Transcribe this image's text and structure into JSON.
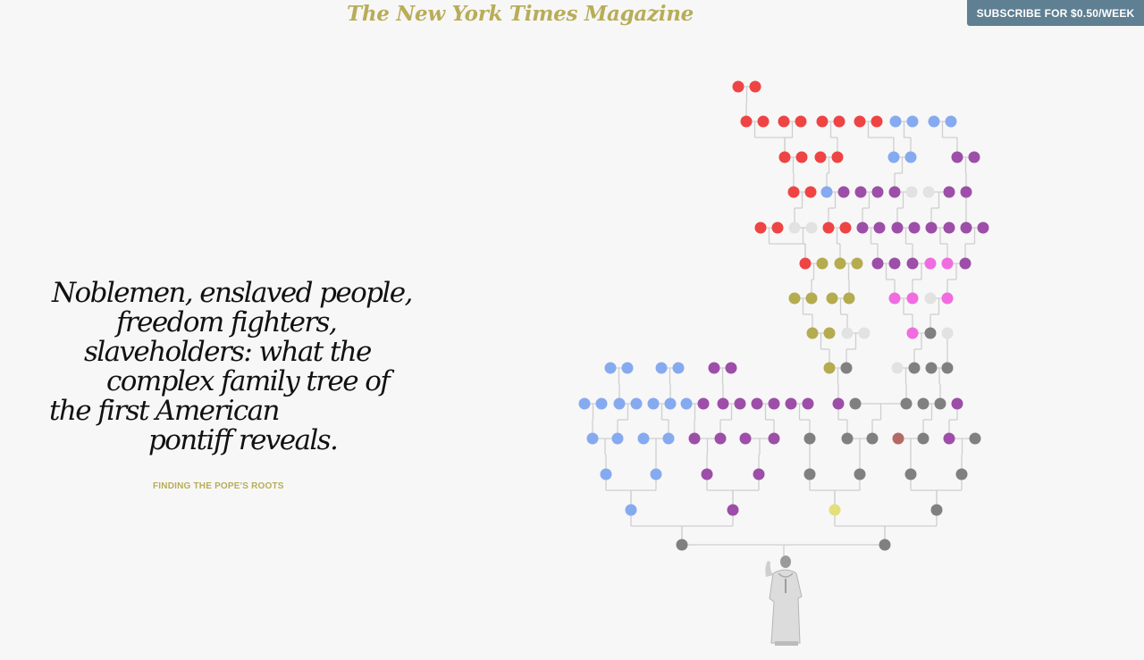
{
  "masthead": {
    "title": "The New York Times Magazine",
    "color": "#b8ad58"
  },
  "subscribe": {
    "label": "SUBSCRIBE FOR $0.50/WEEK",
    "bg": "#5f7f92"
  },
  "headline": {
    "lines": [
      "Noblemen, enslaved people,",
      "freedom fighters,",
      "slaveholders: what the",
      "complex family tree of",
      "the first American",
      "pontiff reveals."
    ]
  },
  "kicker": {
    "label": "FINDING THE POPE'S ROOTS",
    "color": "#b8ad58"
  },
  "colors": {
    "red": "#ef4444",
    "blue": "#86aaf0",
    "purple": "#9d4ea8",
    "olive": "#b5ab4f",
    "pink": "#f06ce0",
    "gray": "#808080",
    "light": "#e2e2e2",
    "yellow": "#e3e07a",
    "brown": "#b46a64",
    "line": "#cfcfcf"
  },
  "tree": {
    "rows": [
      "RR",
      "RR RR RR RR BB BB",
      "RR RR BB PP",
      "RR BP PP PL LP P",
      "RR LL RR PP PP PP PP P",
      "RO OO PP PK KP K",
      "OO OO KK LK",
      "OO LL KG L",
      "BB BB PP OG LG GG",
      "BB BB BB BP PP PP PP P GG GG PP",
      "BB BB PP PP G GG NG PG",
      "B B P P G G G G",
      "B P Y G",
      "G G"
    ]
  }
}
